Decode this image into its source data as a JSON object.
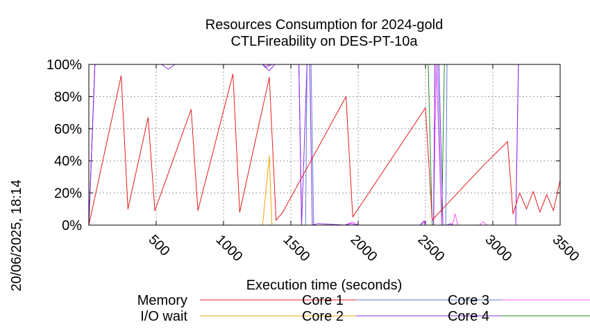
{
  "timestamp": "20/06/2025, 18:14",
  "chart_data": {
    "type": "line",
    "title": "Resources Consumption for 2024-gold",
    "subtitle": "CTLFireability on DES-PT-10a",
    "xlabel": "Execution time (seconds)",
    "ylabel": "",
    "xlim": [
      0,
      3500
    ],
    "ylim": [
      0,
      100
    ],
    "x_ticks": [
      "500",
      "1000",
      "1500",
      "2000",
      "2500",
      "3000",
      "3500"
    ],
    "x_tick_values": [
      500,
      1000,
      1500,
      2000,
      2500,
      3000,
      3500
    ],
    "y_ticks": [
      "0%",
      "20%",
      "40%",
      "60%",
      "80%",
      "100%"
    ],
    "y_tick_values": [
      0,
      20,
      40,
      60,
      80,
      100
    ],
    "grid": true,
    "legend_position": "bottom",
    "series": [
      {
        "name": "Memory",
        "color": "#e41a1c",
        "points": [
          [
            0,
            0
          ],
          [
            240,
            93
          ],
          [
            290,
            10
          ],
          [
            440,
            67
          ],
          [
            490,
            9
          ],
          [
            760,
            72
          ],
          [
            810,
            9
          ],
          [
            1070,
            94
          ],
          [
            1120,
            8
          ],
          [
            1340,
            92
          ],
          [
            1390,
            3
          ],
          [
            1440,
            8
          ],
          [
            1910,
            80
          ],
          [
            1960,
            5
          ],
          [
            2500,
            73
          ],
          [
            2550,
            3
          ],
          [
            2570,
            5
          ],
          [
            2940,
            38
          ],
          [
            3110,
            52
          ],
          [
            3150,
            7
          ],
          [
            3200,
            20
          ],
          [
            3250,
            10
          ],
          [
            3300,
            21
          ],
          [
            3350,
            8
          ],
          [
            3400,
            19
          ],
          [
            3450,
            9
          ],
          [
            3500,
            28
          ]
        ]
      },
      {
        "name": "I/O wait",
        "color": "#f0a500",
        "points": [
          [
            1290,
            0
          ],
          [
            1340,
            43
          ],
          [
            1360,
            0
          ]
        ]
      },
      {
        "name": "Core 1",
        "color": "#5b7bd5",
        "points": [
          [
            0,
            0
          ],
          [
            45,
            100
          ],
          [
            1290,
            100
          ],
          [
            1310,
            98
          ],
          [
            1360,
            100
          ],
          [
            1430,
            100
          ],
          [
            1560,
            100
          ],
          [
            1580,
            0
          ],
          [
            1610,
            0
          ],
          [
            1620,
            100
          ],
          [
            1650,
            100
          ],
          [
            1670,
            0
          ],
          [
            1900,
            0
          ],
          [
            1950,
            0
          ],
          [
            2000,
            0
          ],
          [
            2080,
            0
          ],
          [
            2460,
            0
          ],
          [
            2480,
            0
          ],
          [
            2500,
            0
          ],
          [
            2520,
            0
          ],
          [
            2560,
            0
          ],
          [
            2570,
            100
          ],
          [
            2590,
            100
          ],
          [
            2620,
            0
          ],
          [
            2650,
            0
          ],
          [
            2660,
            100
          ],
          [
            3500,
            100
          ]
        ]
      },
      {
        "name": "Core 2",
        "color": "#8a2be2",
        "points": [
          [
            0,
            0
          ],
          [
            45,
            100
          ],
          [
            540,
            100
          ],
          [
            590,
            97
          ],
          [
            640,
            100
          ],
          [
            1290,
            100
          ],
          [
            1340,
            96
          ],
          [
            1380,
            100
          ],
          [
            1560,
            100
          ],
          [
            1580,
            0
          ],
          [
            1620,
            100
          ],
          [
            1640,
            100
          ],
          [
            1660,
            0
          ],
          [
            1700,
            1
          ],
          [
            1900,
            0
          ],
          [
            1950,
            1
          ],
          [
            2000,
            0
          ],
          [
            2460,
            0
          ],
          [
            2490,
            2
          ],
          [
            2500,
            0
          ],
          [
            2560,
            0
          ],
          [
            2570,
            100
          ],
          [
            2600,
            100
          ],
          [
            2630,
            0
          ],
          [
            2660,
            0
          ],
          [
            2690,
            1
          ],
          [
            2700,
            0
          ],
          [
            3170,
            0
          ],
          [
            3190,
            100
          ],
          [
            3500,
            100
          ]
        ]
      },
      {
        "name": "Core 3",
        "color": "#ff55ff",
        "points": [
          [
            0,
            0
          ],
          [
            45,
            100
          ],
          [
            1290,
            100
          ],
          [
            1310,
            99
          ],
          [
            1360,
            100
          ],
          [
            1430,
            100
          ],
          [
            1560,
            100
          ],
          [
            1580,
            0
          ],
          [
            1610,
            0
          ],
          [
            1650,
            0
          ],
          [
            1800,
            0
          ],
          [
            1900,
            0
          ],
          [
            1960,
            2
          ],
          [
            2000,
            0
          ],
          [
            2050,
            0
          ],
          [
            2460,
            0
          ],
          [
            2490,
            3
          ],
          [
            2500,
            0
          ],
          [
            2560,
            0
          ],
          [
            2580,
            100
          ],
          [
            2620,
            0
          ],
          [
            2700,
            0
          ],
          [
            2720,
            7
          ],
          [
            2740,
            0
          ],
          [
            2900,
            0
          ],
          [
            2930,
            2
          ],
          [
            2960,
            0
          ],
          [
            3170,
            0
          ],
          [
            3190,
            100
          ],
          [
            3500,
            100
          ]
        ]
      },
      {
        "name": "Core 4",
        "color": "#1a8f1a",
        "points": [
          [
            0,
            0
          ],
          [
            45,
            100
          ],
          [
            2520,
            100
          ],
          [
            2550,
            0
          ],
          [
            2620,
            0
          ],
          [
            2640,
            100
          ],
          [
            3500,
            100
          ]
        ]
      }
    ]
  }
}
